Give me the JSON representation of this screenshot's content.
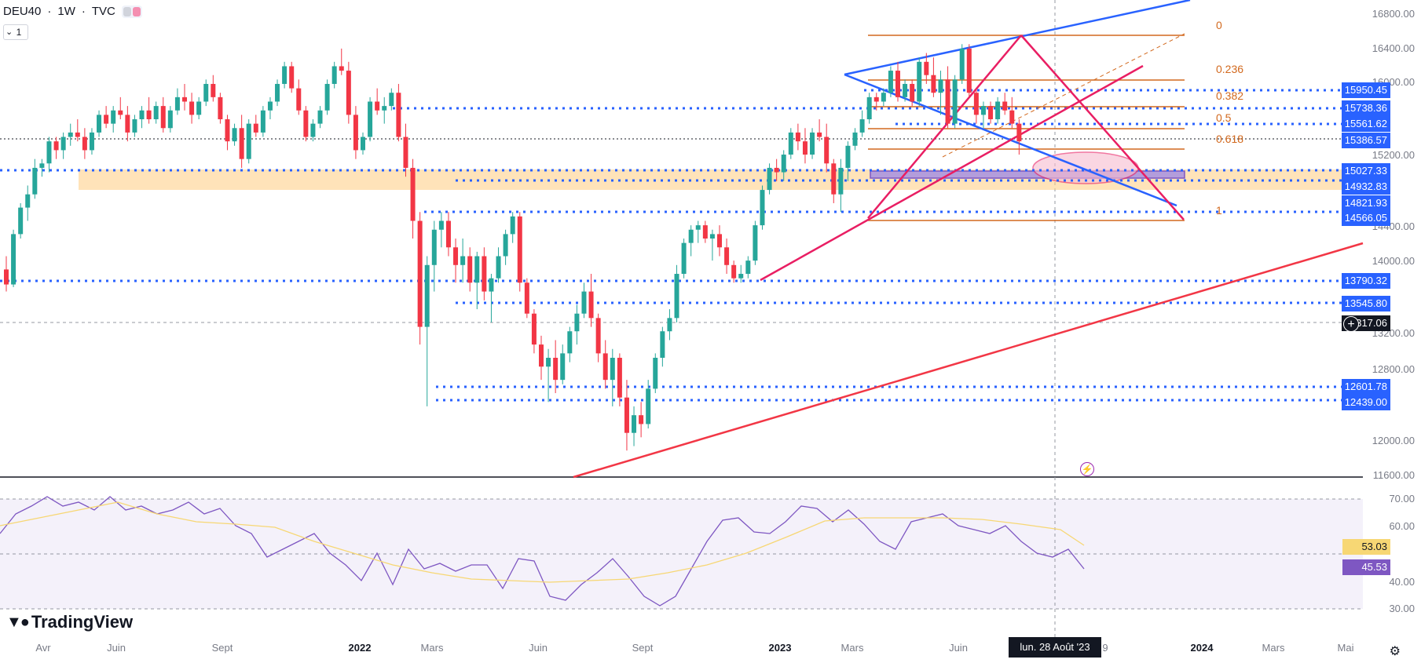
{
  "header": {
    "symbol": "DEU40",
    "interval": "1W",
    "exchange": "TVC",
    "sep": "·"
  },
  "interval_box": {
    "value": "1"
  },
  "price_axis": {
    "ticks": [
      "16800.00",
      "16400.00",
      "16000.00",
      "15200.00",
      "14400.00",
      "14000.00",
      "13200.00",
      "12800.00",
      "12000.00",
      "11600.00"
    ],
    "level_labels": [
      "15950.45",
      "15738.36",
      "15561.62",
      "15386.57",
      "15027.33",
      "14932.83",
      "14821.93",
      "14566.05",
      "13790.32",
      "13545.80",
      "12601.78",
      "12439.00"
    ],
    "current_price": "13317.06"
  },
  "fib_levels": [
    "0",
    "0.236",
    "0.382",
    "0.5",
    "0.618",
    "1"
  ],
  "rsi": {
    "ticks": [
      "70.00",
      "60.00",
      "40.00",
      "30.00"
    ],
    "ma_value": "53.03",
    "rsi_value": "45.53"
  },
  "time_axis": [
    "Avr",
    "Juin",
    "Sept",
    "2022",
    "Mars",
    "Juin",
    "Sept",
    "2023",
    "Mars",
    "Juin",
    "9",
    "2024",
    "Mars",
    "Mai"
  ],
  "cursor_date": "lun. 28 Août '23",
  "brand": {
    "name": "TradingView"
  },
  "colors": {
    "bull": "#26a69a",
    "bear": "#f23645",
    "level": "#2962ff",
    "fib": "#d2691e",
    "channel": "#2962ff",
    "trend": "#e91e63",
    "rsi": "#7e57c2",
    "rsi_ma": "#f7d774",
    "zone": "#ffcc80"
  },
  "icons": [
    "chart-type-icon",
    "add-icon",
    "alert-bolt-icon",
    "settings-icon",
    "tradingview-logo-icon"
  ],
  "chart_data": {
    "type": "candlestick",
    "title": "DEU40 · 1W · TVC",
    "ylim": [
      11600,
      17000
    ],
    "candles": [
      [
        13950,
        14100,
        13700,
        13780
      ],
      [
        13780,
        14400,
        13750,
        14350
      ],
      [
        14350,
        14700,
        14300,
        14650
      ],
      [
        14650,
        14900,
        14500,
        14800
      ],
      [
        14800,
        15200,
        14750,
        15100
      ],
      [
        15100,
        15200,
        15000,
        15150
      ],
      [
        15150,
        15450,
        15050,
        15400
      ],
      [
        15400,
        15450,
        15200,
        15300
      ],
      [
        15300,
        15500,
        15200,
        15450
      ],
      [
        15450,
        15600,
        15350,
        15500
      ],
      [
        15500,
        15650,
        15400,
        15450
      ],
      [
        15450,
        15550,
        15200,
        15300
      ],
      [
        15300,
        15550,
        15250,
        15500
      ],
      [
        15500,
        15750,
        15450,
        15700
      ],
      [
        15700,
        15800,
        15550,
        15600
      ],
      [
        15600,
        15800,
        15500,
        15750
      ],
      [
        15750,
        15900,
        15650,
        15700
      ],
      [
        15700,
        15800,
        15400,
        15500
      ],
      [
        15500,
        15700,
        15450,
        15650
      ],
      [
        15650,
        15800,
        15550,
        15750
      ],
      [
        15750,
        15900,
        15600,
        15650
      ],
      [
        15650,
        15850,
        15600,
        15800
      ],
      [
        15800,
        15900,
        15500,
        15550
      ],
      [
        15550,
        15800,
        15500,
        15750
      ],
      [
        15750,
        16000,
        15700,
        15900
      ],
      [
        15900,
        16050,
        15750,
        15850
      ],
      [
        15850,
        15950,
        15600,
        15700
      ],
      [
        15700,
        15900,
        15650,
        15850
      ],
      [
        15850,
        16100,
        15800,
        16050
      ],
      [
        16050,
        16150,
        15850,
        15900
      ],
      [
        15900,
        15950,
        15600,
        15650
      ],
      [
        15650,
        15700,
        15300,
        15400
      ],
      [
        15400,
        15600,
        15350,
        15550
      ],
      [
        15550,
        15700,
        15100,
        15200
      ],
      [
        15200,
        15650,
        15150,
        15600
      ],
      [
        15600,
        15700,
        15450,
        15500
      ],
      [
        15500,
        15800,
        15450,
        15750
      ],
      [
        15750,
        15900,
        15650,
        15850
      ],
      [
        15850,
        16100,
        15800,
        16050
      ],
      [
        16050,
        16300,
        16000,
        16250
      ],
      [
        16250,
        16300,
        15950,
        16000
      ],
      [
        16000,
        16100,
        15700,
        15750
      ],
      [
        15750,
        15800,
        15400,
        15450
      ],
      [
        15450,
        15650,
        15400,
        15600
      ],
      [
        15600,
        15800,
        15550,
        15750
      ],
      [
        15750,
        16100,
        15700,
        16050
      ],
      [
        16050,
        16300,
        16000,
        16250
      ],
      [
        16250,
        16450,
        16150,
        16200
      ],
      [
        16200,
        16300,
        15600,
        15700
      ],
      [
        15700,
        15800,
        15200,
        15300
      ],
      [
        15300,
        15500,
        15250,
        15450
      ],
      [
        15450,
        15900,
        15400,
        15850
      ],
      [
        15850,
        16000,
        15700,
        15750
      ],
      [
        15750,
        15900,
        15600,
        15800
      ],
      [
        15800,
        16000,
        15750,
        15950
      ],
      [
        15950,
        16050,
        15400,
        15450
      ],
      [
        15450,
        15600,
        15000,
        15100
      ],
      [
        15100,
        15200,
        14300,
        14500
      ],
      [
        14500,
        14600,
        13100,
        13300
      ],
      [
        13300,
        14100,
        12400,
        14000
      ],
      [
        14000,
        14500,
        13700,
        14400
      ],
      [
        14400,
        14600,
        14200,
        14500
      ],
      [
        14500,
        14600,
        14100,
        14200
      ],
      [
        14200,
        14300,
        13800,
        14000
      ],
      [
        14000,
        14300,
        13800,
        14100
      ],
      [
        14100,
        14200,
        13700,
        13800
      ],
      [
        13800,
        14150,
        13500,
        14100
      ],
      [
        14100,
        14200,
        13600,
        13700
      ],
      [
        13700,
        13900,
        13350,
        13850
      ],
      [
        13850,
        14200,
        13800,
        14100
      ],
      [
        14100,
        14400,
        14000,
        14350
      ],
      [
        14350,
        14600,
        14250,
        14550
      ],
      [
        14550,
        14600,
        13700,
        13800
      ],
      [
        13800,
        13850,
        13400,
        13450
      ],
      [
        13450,
        13500,
        13000,
        13100
      ],
      [
        13100,
        13200,
        12700,
        12850
      ],
      [
        12850,
        13050,
        12450,
        12950
      ],
      [
        12950,
        13150,
        12550,
        12700
      ],
      [
        12700,
        13100,
        12650,
        13000
      ],
      [
        13000,
        13300,
        12900,
        13250
      ],
      [
        13250,
        13550,
        13100,
        13450
      ],
      [
        13450,
        13800,
        13400,
        13700
      ],
      [
        13700,
        13900,
        13300,
        13400
      ],
      [
        13400,
        13450,
        12900,
        13000
      ],
      [
        13000,
        13150,
        12600,
        12700
      ],
      [
        12700,
        13050,
        12400,
        12950
      ],
      [
        12950,
        13000,
        12400,
        12500
      ],
      [
        12500,
        12700,
        11900,
        12100
      ],
      [
        12100,
        12400,
        11950,
        12300
      ],
      [
        12300,
        12450,
        12050,
        12200
      ],
      [
        12200,
        12700,
        12150,
        12600
      ],
      [
        12600,
        13000,
        12550,
        12950
      ],
      [
        12950,
        13300,
        12850,
        13250
      ],
      [
        13250,
        13500,
        13150,
        13400
      ],
      [
        13400,
        14000,
        13350,
        13900
      ],
      [
        13900,
        14300,
        13850,
        14250
      ],
      [
        14250,
        14450,
        14100,
        14400
      ],
      [
        14400,
        14500,
        14250,
        14450
      ],
      [
        14450,
        14500,
        14250,
        14300
      ],
      [
        14300,
        14400,
        14050,
        14350
      ],
      [
        14350,
        14450,
        14100,
        14200
      ],
      [
        14200,
        14300,
        13900,
        14000
      ],
      [
        14000,
        14050,
        13800,
        13850
      ],
      [
        13850,
        14000,
        13800,
        13900
      ],
      [
        13900,
        14100,
        13850,
        14050
      ],
      [
        14050,
        14500,
        14000,
        14450
      ],
      [
        14450,
        14900,
        14400,
        14850
      ],
      [
        14850,
        15150,
        14800,
        15100
      ],
      [
        15100,
        15200,
        14950,
        15050
      ],
      [
        15050,
        15300,
        14950,
        15250
      ],
      [
        15250,
        15550,
        15200,
        15500
      ],
      [
        15500,
        15600,
        15300,
        15400
      ],
      [
        15400,
        15550,
        15150,
        15250
      ],
      [
        15250,
        15550,
        15200,
        15500
      ],
      [
        15500,
        15650,
        15400,
        15450
      ],
      [
        15450,
        15600,
        15050,
        15150
      ],
      [
        15150,
        15200,
        14700,
        14800
      ],
      [
        14800,
        15200,
        14600,
        15100
      ],
      [
        15100,
        15400,
        14950,
        15350
      ],
      [
        15350,
        15550,
        15300,
        15500
      ],
      [
        15500,
        15750,
        15450,
        15650
      ],
      [
        15650,
        15950,
        15600,
        15900
      ],
      [
        15900,
        15950,
        15750,
        15850
      ],
      [
        15850,
        16000,
        15800,
        15950
      ],
      [
        15950,
        16250,
        15900,
        16200
      ],
      [
        16200,
        16300,
        15850,
        15900
      ],
      [
        15900,
        16100,
        15850,
        16050
      ],
      [
        16050,
        16100,
        15800,
        15850
      ],
      [
        15850,
        16350,
        15800,
        16300
      ],
      [
        16300,
        16400,
        16050,
        16150
      ],
      [
        16150,
        16350,
        15900,
        15950
      ],
      [
        15950,
        16200,
        15700,
        16100
      ],
      [
        16100,
        16250,
        15550,
        15600
      ],
      [
        15600,
        16150,
        15550,
        16100
      ],
      [
        16100,
        16500,
        16050,
        16450
      ],
      [
        16450,
        16500,
        15900,
        15950
      ],
      [
        15950,
        16000,
        15600,
        15700
      ],
      [
        15700,
        15850,
        15550,
        15800
      ],
      [
        15800,
        15850,
        15600,
        15650
      ],
      [
        15650,
        15900,
        15600,
        15850
      ],
      [
        15850,
        15950,
        15700,
        15750
      ],
      [
        15750,
        15900,
        15550,
        15600
      ],
      [
        15600,
        15650,
        15250,
        15400
      ]
    ]
  }
}
